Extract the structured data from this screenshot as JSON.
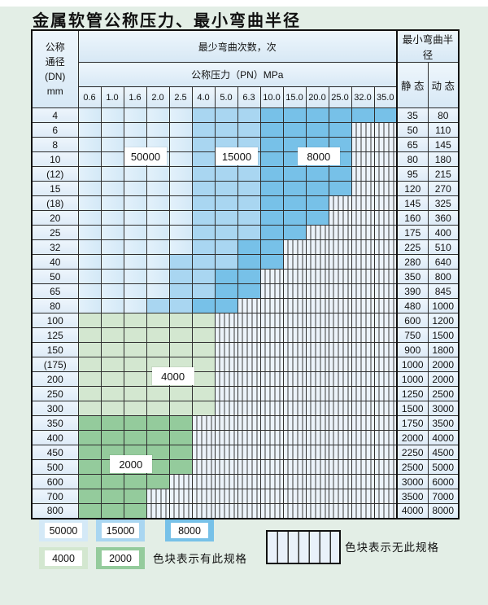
{
  "title": "金属软管公称压力、最小弯曲半径",
  "table": {
    "dn_header_lines": [
      "公称",
      "通径",
      "(DN)",
      "mm"
    ],
    "bend_times_header": "最少弯曲次数，次",
    "pressure_header": "公称压力（PN）MPa",
    "pressure_values": [
      "0.6",
      "1.0",
      "1.6",
      "2.0",
      "2.5",
      "4.0",
      "5.0",
      "6.3",
      "10.0",
      "15.0",
      "20.0",
      "25.0",
      "32.0",
      "35.0"
    ],
    "radius_header": "最小弯曲半径",
    "static_header": "静 态",
    "dynamic_header": "动 态",
    "rows": [
      {
        "dn": "4",
        "static": "35",
        "dynamic": "80",
        "cells": [
          "b1",
          "b1",
          "b1",
          "b1",
          "b1",
          "b2",
          "b2",
          "b2",
          "b3",
          "b3",
          "b3",
          "b3",
          "b3",
          "b3"
        ]
      },
      {
        "dn": "6",
        "static": "50",
        "dynamic": "110",
        "cells": [
          "b1",
          "b1",
          "b1",
          "b1",
          "b1",
          "b2",
          "b2",
          "b2",
          "b3",
          "b3",
          "b3",
          "b3",
          "x",
          "x"
        ]
      },
      {
        "dn": "8",
        "static": "65",
        "dynamic": "145",
        "cells": [
          "b1",
          "b1",
          "b1",
          "b1",
          "b1",
          "b2",
          "b2",
          "b2",
          "b3",
          "b3",
          "b3",
          "b3",
          "x",
          "x"
        ]
      },
      {
        "dn": "10",
        "static": "80",
        "dynamic": "180",
        "cells": [
          "b1",
          "b1",
          "b1",
          "b1",
          "b1",
          "b2",
          "b2",
          "b2",
          "b3",
          "b3",
          "b3",
          "b3",
          "x",
          "x"
        ]
      },
      {
        "dn": "(12)",
        "static": "95",
        "dynamic": "215",
        "cells": [
          "b1",
          "b1",
          "b1",
          "b1",
          "b1",
          "b2",
          "b2",
          "b2",
          "b3",
          "b3",
          "b3",
          "b3",
          "x",
          "x"
        ]
      },
      {
        "dn": "15",
        "static": "120",
        "dynamic": "270",
        "cells": [
          "b1",
          "b1",
          "b1",
          "b1",
          "b1",
          "b2",
          "b2",
          "b2",
          "b3",
          "b3",
          "b3",
          "b3",
          "x",
          "x"
        ]
      },
      {
        "dn": "(18)",
        "static": "145",
        "dynamic": "325",
        "cells": [
          "b1",
          "b1",
          "b1",
          "b1",
          "b1",
          "b2",
          "b2",
          "b2",
          "b3",
          "b3",
          "b3",
          "x",
          "x",
          "x"
        ]
      },
      {
        "dn": "20",
        "static": "160",
        "dynamic": "360",
        "cells": [
          "b1",
          "b1",
          "b1",
          "b1",
          "b1",
          "b2",
          "b2",
          "b2",
          "b3",
          "b3",
          "b3",
          "x",
          "x",
          "x"
        ]
      },
      {
        "dn": "25",
        "static": "175",
        "dynamic": "400",
        "cells": [
          "b1",
          "b1",
          "b1",
          "b1",
          "b1",
          "b2",
          "b2",
          "b2",
          "b3",
          "b3",
          "x",
          "x",
          "x",
          "x"
        ]
      },
      {
        "dn": "32",
        "static": "225",
        "dynamic": "510",
        "cells": [
          "b1",
          "b1",
          "b1",
          "b1",
          "b1",
          "b2",
          "b2",
          "b3",
          "b3",
          "x",
          "x",
          "x",
          "x",
          "x"
        ]
      },
      {
        "dn": "40",
        "static": "280",
        "dynamic": "640",
        "cells": [
          "b1",
          "b1",
          "b1",
          "b1",
          "b2",
          "b2",
          "b2",
          "b3",
          "b3",
          "x",
          "x",
          "x",
          "x",
          "x"
        ]
      },
      {
        "dn": "50",
        "static": "350",
        "dynamic": "800",
        "cells": [
          "b1",
          "b1",
          "b1",
          "b1",
          "b2",
          "b2",
          "b3",
          "b3",
          "x",
          "x",
          "x",
          "x",
          "x",
          "x"
        ]
      },
      {
        "dn": "65",
        "static": "390",
        "dynamic": "845",
        "cells": [
          "b1",
          "b1",
          "b1",
          "b1",
          "b2",
          "b2",
          "b3",
          "b3",
          "x",
          "x",
          "x",
          "x",
          "x",
          "x"
        ]
      },
      {
        "dn": "80",
        "static": "480",
        "dynamic": "1000",
        "cells": [
          "b1",
          "b1",
          "b1",
          "b2",
          "b2",
          "b3",
          "b3",
          "x",
          "x",
          "x",
          "x",
          "x",
          "x",
          "x"
        ]
      },
      {
        "dn": "100",
        "static": "600",
        "dynamic": "1200",
        "cells": [
          "g1",
          "g1",
          "g1",
          "g1",
          "g1",
          "g1",
          "x",
          "x",
          "x",
          "x",
          "x",
          "x",
          "x",
          "x"
        ]
      },
      {
        "dn": "125",
        "static": "750",
        "dynamic": "1500",
        "cells": [
          "g1",
          "g1",
          "g1",
          "g1",
          "g1",
          "g1",
          "x",
          "x",
          "x",
          "x",
          "x",
          "x",
          "x",
          "x"
        ]
      },
      {
        "dn": "150",
        "static": "900",
        "dynamic": "1800",
        "cells": [
          "g1",
          "g1",
          "g1",
          "g1",
          "g1",
          "g1",
          "x",
          "x",
          "x",
          "x",
          "x",
          "x",
          "x",
          "x"
        ]
      },
      {
        "dn": "(175)",
        "static": "1000",
        "dynamic": "2000",
        "cells": [
          "g1",
          "g1",
          "g1",
          "g1",
          "g1",
          "g1",
          "x",
          "x",
          "x",
          "x",
          "x",
          "x",
          "x",
          "x"
        ]
      },
      {
        "dn": "200",
        "static": "1000",
        "dynamic": "2000",
        "cells": [
          "g1",
          "g1",
          "g1",
          "g1",
          "g1",
          "g1",
          "x",
          "x",
          "x",
          "x",
          "x",
          "x",
          "x",
          "x"
        ]
      },
      {
        "dn": "250",
        "static": "1250",
        "dynamic": "2500",
        "cells": [
          "g1",
          "g1",
          "g1",
          "g1",
          "g1",
          "g1",
          "x",
          "x",
          "x",
          "x",
          "x",
          "x",
          "x",
          "x"
        ]
      },
      {
        "dn": "300",
        "static": "1500",
        "dynamic": "3000",
        "cells": [
          "g1",
          "g1",
          "g1",
          "g1",
          "g1",
          "g1",
          "x",
          "x",
          "x",
          "x",
          "x",
          "x",
          "x",
          "x"
        ]
      },
      {
        "dn": "350",
        "static": "1750",
        "dynamic": "3500",
        "cells": [
          "g2",
          "g2",
          "g2",
          "g2",
          "g2",
          "x",
          "x",
          "x",
          "x",
          "x",
          "x",
          "x",
          "x",
          "x"
        ]
      },
      {
        "dn": "400",
        "static": "2000",
        "dynamic": "4000",
        "cells": [
          "g2",
          "g2",
          "g2",
          "g2",
          "g2",
          "x",
          "x",
          "x",
          "x",
          "x",
          "x",
          "x",
          "x",
          "x"
        ]
      },
      {
        "dn": "450",
        "static": "2250",
        "dynamic": "4500",
        "cells": [
          "g2",
          "g2",
          "g2",
          "g2",
          "g2",
          "x",
          "x",
          "x",
          "x",
          "x",
          "x",
          "x",
          "x",
          "x"
        ]
      },
      {
        "dn": "500",
        "static": "2500",
        "dynamic": "5000",
        "cells": [
          "g2",
          "g2",
          "g2",
          "g2",
          "g2",
          "x",
          "x",
          "x",
          "x",
          "x",
          "x",
          "x",
          "x",
          "x"
        ]
      },
      {
        "dn": "600",
        "static": "3000",
        "dynamic": "6000",
        "cells": [
          "g2",
          "g2",
          "g2",
          "g2",
          "x",
          "x",
          "x",
          "x",
          "x",
          "x",
          "x",
          "x",
          "x",
          "x"
        ]
      },
      {
        "dn": "700",
        "static": "3500",
        "dynamic": "7000",
        "cells": [
          "g2",
          "g2",
          "g2",
          "x",
          "x",
          "x",
          "x",
          "x",
          "x",
          "x",
          "x",
          "x",
          "x",
          "x"
        ]
      },
      {
        "dn": "800",
        "static": "4000",
        "dynamic": "8000",
        "cells": [
          "g2",
          "g2",
          "g2",
          "x",
          "x",
          "x",
          "x",
          "x",
          "x",
          "x",
          "x",
          "x",
          "x",
          "x"
        ]
      }
    ]
  },
  "overlay_labels": [
    {
      "text": "50000",
      "col": 2,
      "row_boundary": 4,
      "span": 2
    },
    {
      "text": "15000",
      "col": 6,
      "row_boundary": 4,
      "span": 2
    },
    {
      "text": "8000",
      "col": 9.6,
      "row_boundary": 4,
      "span": 2
    },
    {
      "text": "4000",
      "col": 3.2,
      "row_boundary": 19,
      "span": 2
    },
    {
      "text": "2000",
      "col": 1.35,
      "row_boundary": 25,
      "span": 2
    }
  ],
  "legend": {
    "items": [
      {
        "value": "50000",
        "shade": "b1"
      },
      {
        "value": "15000",
        "shade": "b2"
      },
      {
        "value": "8000",
        "shade": "b3"
      },
      {
        "value": "4000",
        "shade": "g1"
      },
      {
        "value": "2000",
        "shade": "g2"
      }
    ],
    "has_spec_text": "色块表示有此规格",
    "no_spec_text": "色块表示无此规格"
  },
  "colors": {
    "b1": "#d4e9f7",
    "b1_light": "#e3f1fb",
    "b2": "#a9d6f1",
    "b3": "#77c1e8",
    "g1": "#d3e7d0",
    "g2": "#94cb9c",
    "hatch_bg": "#ecf3fa"
  }
}
